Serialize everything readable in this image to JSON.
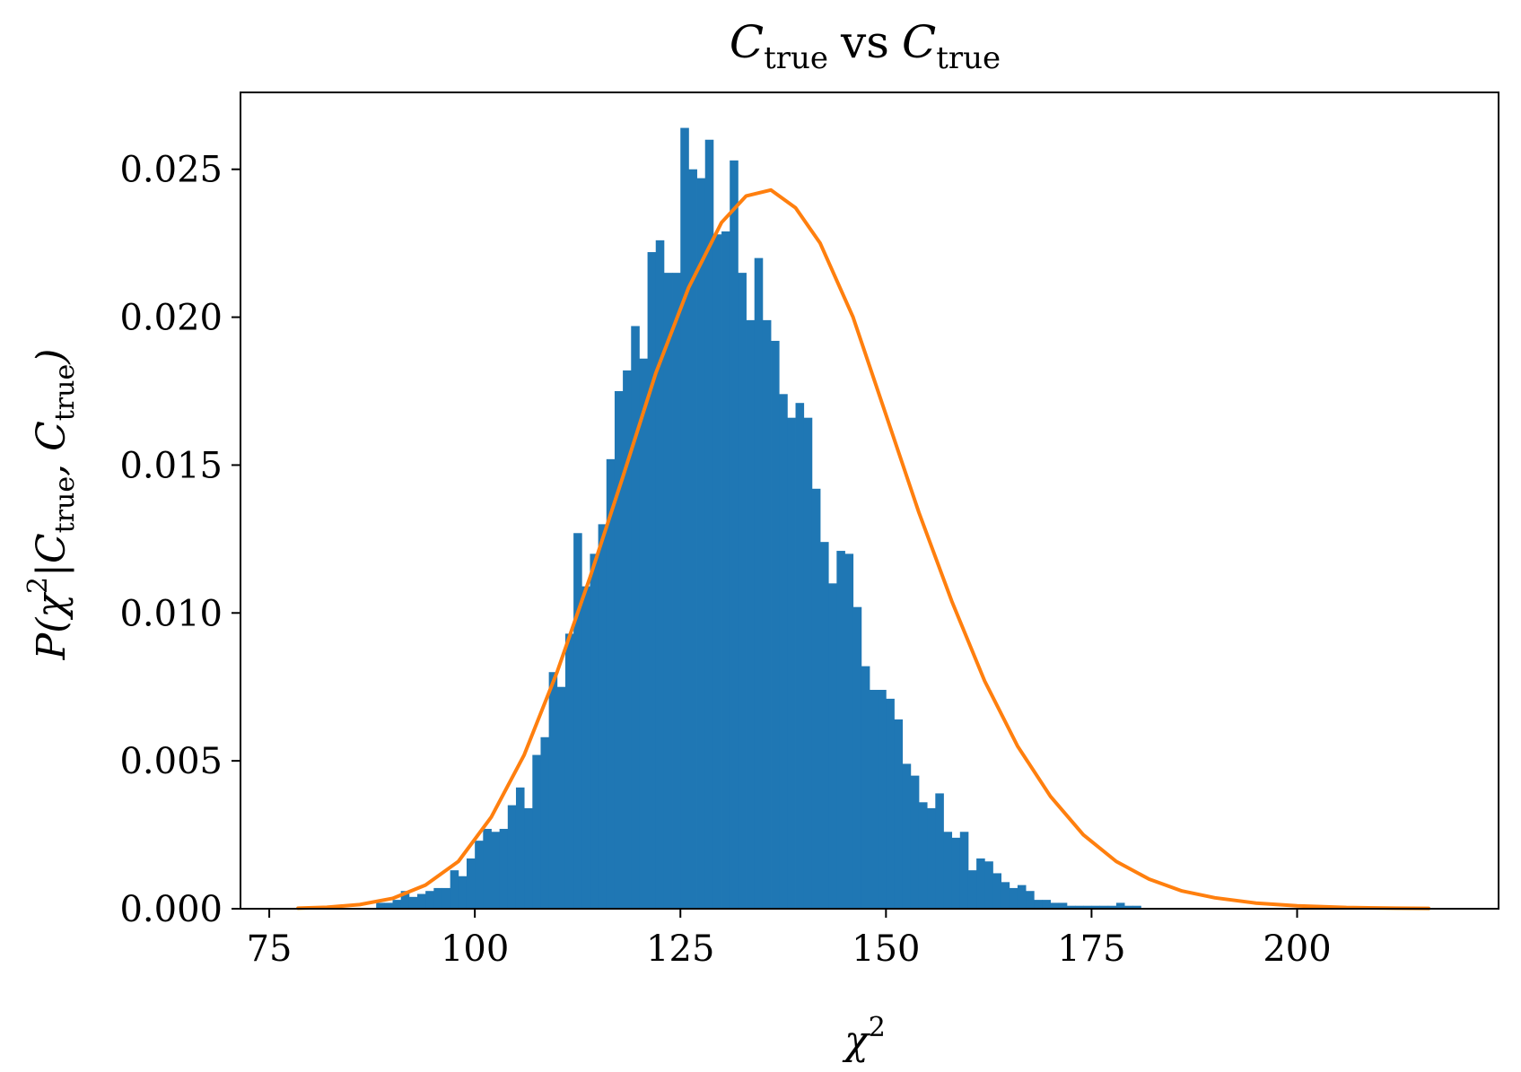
{
  "colors": {
    "histogram": "#1f77b4",
    "curve": "#ff7f0e",
    "axes": "#000000",
    "background": "#ffffff"
  },
  "chart_data": {
    "type": "bar",
    "title_parts": {
      "left_main": "C",
      "left_sub": "true",
      "middle": "vs",
      "right_main": "C",
      "right_sub": "true"
    },
    "xlabel_parts": {
      "main": "χ",
      "sup": "2"
    },
    "ylabel_parts": {
      "open": "P(χ",
      "sup": "2",
      "bar": "|C",
      "sub1": "true",
      "comma": ", C",
      "sub2": "true",
      "close": ")"
    },
    "xlim": [
      71.5,
      224.5
    ],
    "ylim": [
      0,
      0.0276
    ],
    "xticks": [
      75,
      100,
      125,
      150,
      175,
      200
    ],
    "xtick_labels": [
      "75",
      "100",
      "125",
      "150",
      "175",
      "200"
    ],
    "yticks": [
      0,
      0.005,
      0.01,
      0.015,
      0.02,
      0.025
    ],
    "ytick_labels": [
      "0.000",
      "0.005",
      "0.010",
      "0.015",
      "0.020",
      "0.025"
    ],
    "grid": false,
    "legend": "none",
    "histogram": {
      "bin_start": 81.0,
      "bin_width": 1.0,
      "values": [
        0.0,
        0.0,
        0.0,
        0.0,
        0.0,
        0.0,
        0.0,
        0.0002,
        0.0002,
        0.0003,
        0.0006,
        0.0004,
        0.0005,
        0.0006,
        0.0007,
        0.0007,
        0.0013,
        0.0011,
        0.0017,
        0.0023,
        0.0027,
        0.0026,
        0.0027,
        0.0035,
        0.0041,
        0.0034,
        0.0052,
        0.0058,
        0.008,
        0.0075,
        0.0093,
        0.0127,
        0.0109,
        0.012,
        0.013,
        0.0152,
        0.0175,
        0.0182,
        0.0197,
        0.0186,
        0.0222,
        0.0226,
        0.0215,
        0.0215,
        0.0264,
        0.025,
        0.0247,
        0.026,
        0.0228,
        0.0229,
        0.0253,
        0.0215,
        0.0199,
        0.022,
        0.0199,
        0.0192,
        0.0174,
        0.0166,
        0.0171,
        0.0166,
        0.0142,
        0.0124,
        0.011,
        0.0121,
        0.012,
        0.0102,
        0.0082,
        0.0074,
        0.0074,
        0.0071,
        0.0064,
        0.0049,
        0.0045,
        0.0036,
        0.0034,
        0.0039,
        0.0026,
        0.0024,
        0.0026,
        0.0013,
        0.0017,
        0.0016,
        0.0012,
        0.0009,
        0.0007,
        0.0008,
        0.0006,
        0.0003,
        0.0003,
        0.0002,
        0.0002,
        0.0001,
        0.0001,
        0.0001,
        0.0001,
        0.0001,
        0.0001,
        0.0002,
        0.0001,
        0.0001,
        0.0,
        0.0,
        0.0,
        0.0,
        0.0,
        0.0,
        0.0,
        0.0,
        0.0,
        0.0,
        0.0,
        0.0,
        0.0,
        0.0,
        0.0,
        0.0,
        0.0,
        0.0,
        0.0,
        0.0,
        0.0,
        0.0,
        0.0,
        0.0,
        0.0,
        0.0,
        0.0,
        0.0,
        0.0,
        0.0,
        0.0,
        0.0,
        0.0,
        0.0,
        0.0,
        0.0,
        0.0,
        0.0,
        0.0,
        0.0
      ]
    },
    "curve": {
      "x": [
        78.5,
        82,
        86,
        90,
        94,
        98,
        102,
        106,
        110,
        114,
        118,
        122,
        126,
        130,
        133,
        136,
        139,
        142,
        146,
        150,
        154,
        158,
        162,
        166,
        170,
        174,
        178,
        182,
        186,
        190,
        195,
        200,
        206,
        212,
        216
      ],
      "y": [
        2e-05,
        5e-05,
        0.00014,
        0.00035,
        0.0008,
        0.0016,
        0.0031,
        0.0052,
        0.008,
        0.0112,
        0.0146,
        0.0181,
        0.021,
        0.0232,
        0.0241,
        0.0243,
        0.0237,
        0.0225,
        0.02,
        0.0167,
        0.0134,
        0.0104,
        0.0077,
        0.0055,
        0.0038,
        0.0025,
        0.0016,
        0.001,
        0.0006,
        0.00037,
        0.00019,
        0.0001,
        4e-05,
        2e-05,
        1e-05
      ]
    }
  }
}
